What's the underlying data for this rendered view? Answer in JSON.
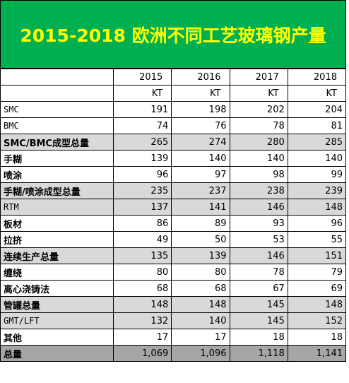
{
  "title": "2015-2018 欧洲不同工艺玻璃钢产量",
  "table": {
    "header": [
      "2015",
      "2016",
      "2017",
      "2018"
    ],
    "units": [
      "KT",
      "KT",
      "KT",
      "KT"
    ],
    "rows": [
      {
        "label": "SMC",
        "values": [
          191,
          198,
          202,
          204
        ]
      },
      {
        "label": "BMC",
        "values": [
          74,
          76,
          78,
          81
        ]
      },
      {
        "label": "SMC/BMC成型总量",
        "values": [
          265,
          274,
          280,
          285
        ]
      },
      {
        "label": "手糊",
        "values": [
          139,
          140,
          140,
          140
        ]
      },
      {
        "label": "喷涂",
        "values": [
          96,
          97,
          98,
          99
        ]
      },
      {
        "label": "手糊/喷涂成型总量",
        "values": [
          235,
          237,
          238,
          239
        ]
      },
      {
        "label": "RTM",
        "values": [
          137,
          141,
          146,
          148
        ]
      },
      {
        "label": "板材",
        "values": [
          86,
          89,
          93,
          96
        ]
      },
      {
        "label": "拉挤",
        "values": [
          49,
          50,
          53,
          55
        ]
      },
      {
        "label": "连续生产总量",
        "values": [
          135,
          139,
          146,
          151
        ]
      },
      {
        "label": "缠绕",
        "values": [
          80,
          80,
          78,
          79
        ]
      },
      {
        "label": "离心浇铸法",
        "values": [
          68,
          68,
          67,
          69
        ]
      },
      {
        "label": "管罐总量",
        "values": [
          148,
          148,
          145,
          148
        ]
      },
      {
        "label": "GMT/LFT",
        "values": [
          132,
          140,
          145,
          152
        ]
      },
      {
        "label": "其他",
        "values": [
          17,
          17,
          18,
          18
        ]
      },
      {
        "label": "总量",
        "values": [
          "1,069",
          "1,096",
          "1,118",
          "1,141"
        ]
      }
    ]
  }
}
